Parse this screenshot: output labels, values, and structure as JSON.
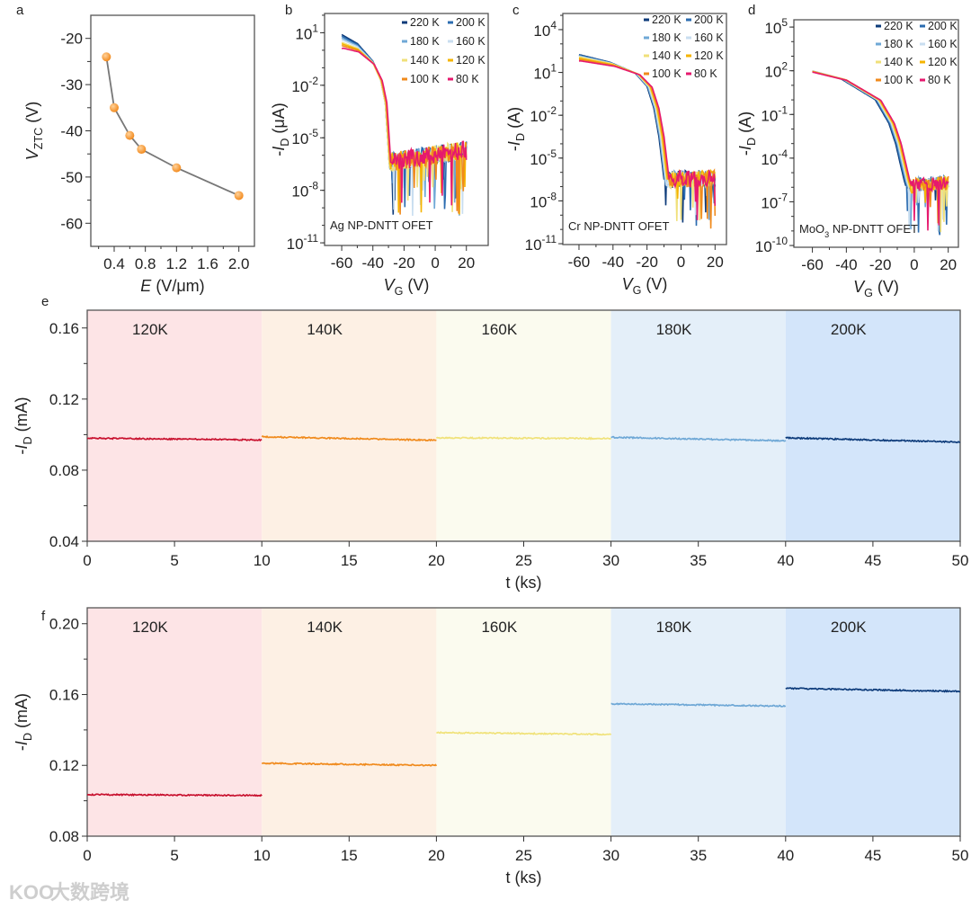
{
  "watermark": {
    "text": "大数跨境",
    "logo": "KOO"
  },
  "chart_data": [
    {
      "id": "a",
      "type": "scatter",
      "panel_label": "a",
      "xlabel": [
        {
          "t": "E",
          "style": "italic"
        },
        {
          "t": " (V/μm)"
        }
      ],
      "ylabel": [
        {
          "t": "V",
          "style": "italic"
        },
        {
          "t": "ZTC",
          "style": "sub"
        },
        {
          "t": " (V)"
        }
      ],
      "xlim": [
        0.1,
        2.2
      ],
      "ylim": [
        -65,
        -15
      ],
      "xticks": [
        0.4,
        0.8,
        1.2,
        1.6,
        2.0
      ],
      "xtick_labels": [
        "0.4",
        "0.8",
        "1.2",
        "1.6",
        "2.0"
      ],
      "yticks": [
        -20,
        -30,
        -40,
        -50,
        -60
      ],
      "ytick_labels": [
        "-20",
        "-30",
        "-40",
        "-50",
        "-60"
      ],
      "x": [
        0.3,
        0.4,
        0.6,
        0.75,
        1.2,
        2.0
      ],
      "y": [
        -24,
        -35,
        -41,
        -44,
        -48,
        -54
      ],
      "marker_color": "#f28a1e",
      "line_color": "#777777"
    },
    {
      "id": "b",
      "type": "line",
      "panel_label": "b",
      "yscale": "log",
      "log_base": "10",
      "xlabel": [
        {
          "t": "V",
          "style": "italic"
        },
        {
          "t": "G",
          "style": "sub"
        },
        {
          "t": " (V)"
        }
      ],
      "ylabel": [
        {
          "t": "-"
        },
        {
          "t": "I",
          "style": "italic"
        },
        {
          "t": "D",
          "style": "sub"
        },
        {
          "t": " (μA)"
        }
      ],
      "annotation": [
        {
          "t": "Ag NP-DNTT OFET"
        }
      ],
      "xlim": [
        -71,
        34
      ],
      "ylim_log10": [
        -11.15,
        2.1
      ],
      "xticks": [
        -60,
        -40,
        -20,
        0,
        20
      ],
      "xtick_labels": [
        "-60",
        "-40",
        "-20",
        "0",
        "20"
      ],
      "ytick_exponents": [
        1,
        -2,
        -5,
        -8,
        -11
      ],
      "base_curve": {
        "vg": [
          -60,
          -50,
          -40,
          -35,
          -32,
          -30.5,
          -29.5,
          20
        ],
        "log10_id": [
          0.6,
          0.2,
          -0.7,
          -1.7,
          -3.0,
          -5.0,
          -6.4,
          -5.7
        ]
      },
      "off_noise": 0.55,
      "off_dip": -9.6,
      "series": [
        {
          "name": "220 K",
          "color": "#0d3b7a",
          "on_offset": 0.3,
          "v_shift": 0
        },
        {
          "name": "200 K",
          "color": "#2b6cb0",
          "on_offset": 0.2,
          "v_shift": 0
        },
        {
          "name": "180 K",
          "color": "#6fa8d6",
          "on_offset": 0.1,
          "v_shift": 0
        },
        {
          "name": "160 K",
          "color": "#c9def0",
          "on_offset": 0.0,
          "v_shift": 0
        },
        {
          "name": "140 K",
          "color": "#f0e07a",
          "on_offset": -0.15,
          "v_shift": 0
        },
        {
          "name": "120 K",
          "color": "#f5b400",
          "on_offset": -0.25,
          "v_shift": 0.5
        },
        {
          "name": "100 K",
          "color": "#f08a1c",
          "on_offset": -0.35,
          "v_shift": 0.5
        },
        {
          "name": "80 K",
          "color": "#e6196e",
          "on_offset": -0.5,
          "v_shift": 1
        }
      ]
    },
    {
      "id": "c",
      "type": "line",
      "panel_label": "c",
      "yscale": "log",
      "log_base": "10",
      "xlabel": [
        {
          "t": "V",
          "style": "italic"
        },
        {
          "t": "G",
          "style": "sub"
        },
        {
          "t": " (V)"
        }
      ],
      "ylabel": [
        {
          "t": "-"
        },
        {
          "t": "I",
          "style": "italic"
        },
        {
          "t": "D",
          "style": "sub"
        },
        {
          "t": " (A)"
        }
      ],
      "annotation": [
        {
          "t": "Cr NP-DNTT OFET"
        }
      ],
      "xlim": [
        -69.5,
        26.7
      ],
      "ylim_log10": [
        -11.06,
        5.13
      ],
      "xticks": [
        -60,
        -40,
        -20,
        0,
        20
      ],
      "xtick_labels": [
        "-60",
        "-40",
        "-20",
        "0",
        "20"
      ],
      "ytick_exponents": [
        4,
        1,
        -2,
        -5,
        -8,
        -11
      ],
      "base_curve": {
        "vg": [
          -60,
          -40,
          -25,
          -18,
          -14,
          -11,
          -9,
          -8,
          20
        ],
        "log10_id": [
          2.1,
          1.6,
          0.9,
          0.0,
          -1.5,
          -3.5,
          -5.5,
          -6.5,
          -6.4
        ]
      },
      "off_noise": 0.6,
      "off_dip": -10,
      "series": [
        {
          "name": "220 K",
          "color": "#0d3b7a",
          "on_offset": 0.2,
          "v_shift": -2
        },
        {
          "name": "200 K",
          "color": "#2b6cb0",
          "on_offset": 0.15,
          "v_shift": -1.5
        },
        {
          "name": "180 K",
          "color": "#6fa8d6",
          "on_offset": 0.1,
          "v_shift": -1.5
        },
        {
          "name": "160 K",
          "color": "#c9def0",
          "on_offset": 0.05,
          "v_shift": -1
        },
        {
          "name": "140 K",
          "color": "#f0e07a",
          "on_offset": 0.0,
          "v_shift": -0.5
        },
        {
          "name": "120 K",
          "color": "#f5b400",
          "on_offset": -0.1,
          "v_shift": 0
        },
        {
          "name": "100 K",
          "color": "#f08a1c",
          "on_offset": -0.2,
          "v_shift": 0.5
        },
        {
          "name": "80 K",
          "color": "#e6196e",
          "on_offset": -0.3,
          "v_shift": 1
        }
      ]
    },
    {
      "id": "d",
      "type": "line",
      "panel_label": "d",
      "yscale": "log",
      "log_base": "10",
      "xlabel": [
        {
          "t": "V",
          "style": "italic"
        },
        {
          "t": "G",
          "style": "sub"
        },
        {
          "t": " (V)"
        }
      ],
      "ylabel": [
        {
          "t": "-"
        },
        {
          "t": "I",
          "style": "italic"
        },
        {
          "t": "D",
          "style": "sub"
        },
        {
          "t": " (A)"
        }
      ],
      "annotation": [
        {
          "t": "MoO"
        },
        {
          "t": "3",
          "style": "sub"
        },
        {
          "t": " NP-DNTT OFET"
        }
      ],
      "xlim": [
        -70.9,
        26
      ],
      "ylim_log10": [
        -10.12,
        5.5
      ],
      "xticks": [
        -60,
        -40,
        -20,
        0,
        20
      ],
      "xtick_labels": [
        "-60",
        "-40",
        "-20",
        "0",
        "20"
      ],
      "ytick_exponents": [
        5,
        2,
        -1,
        -4,
        -7,
        -10
      ],
      "base_curve": {
        "vg": [
          -60,
          -40,
          -20,
          -12,
          -8,
          -5,
          -3,
          -2,
          20
        ],
        "log10_id": [
          2.0,
          1.4,
          0.0,
          -1.6,
          -3.0,
          -4.5,
          -5.5,
          -5.9,
          -5.7
        ]
      },
      "off_noise": 0.5,
      "off_dip": -9.3,
      "series": [
        {
          "name": "220 K",
          "color": "#0d3b7a",
          "on_offset": 0.05,
          "v_shift": -3
        },
        {
          "name": "200 K",
          "color": "#2b6cb0",
          "on_offset": 0.05,
          "v_shift": -2.5
        },
        {
          "name": "180 K",
          "color": "#6fa8d6",
          "on_offset": 0.05,
          "v_shift": -2
        },
        {
          "name": "160 K",
          "color": "#c9def0",
          "on_offset": 0.0,
          "v_shift": -1.5
        },
        {
          "name": "140 K",
          "color": "#f0e07a",
          "on_offset": 0.0,
          "v_shift": -1
        },
        {
          "name": "120 K",
          "color": "#f5b400",
          "on_offset": -0.05,
          "v_shift": -0.5
        },
        {
          "name": "100 K",
          "color": "#f08a1c",
          "on_offset": -0.05,
          "v_shift": 0
        },
        {
          "name": "80 K",
          "color": "#e6196e",
          "on_offset": -0.1,
          "v_shift": 0.3
        }
      ]
    },
    {
      "id": "e",
      "type": "line",
      "panel_label": "e",
      "xlabel": [
        {
          "t": "t (ks)"
        }
      ],
      "ylabel": [
        {
          "t": "-"
        },
        {
          "t": "I",
          "style": "italic"
        },
        {
          "t": "D",
          "style": "sub"
        },
        {
          "t": " (mA)"
        }
      ],
      "xlim": [
        0,
        50
      ],
      "ylim": [
        0.04,
        0.17
      ],
      "xticks": [
        0,
        5,
        10,
        15,
        20,
        25,
        30,
        35,
        40,
        45,
        50
      ],
      "xtick_labels": [
        "0",
        "5",
        "10",
        "15",
        "20",
        "25",
        "30",
        "35",
        "40",
        "45",
        "50"
      ],
      "yticks": [
        0.04,
        0.08,
        0.12,
        0.16
      ],
      "ytick_labels": [
        "0.04",
        "0.08",
        "0.12",
        "0.16"
      ],
      "yminor": [
        0.06,
        0.1,
        0.14
      ],
      "segments": [
        {
          "label": "120K",
          "t": [
            0,
            10
          ],
          "start": 0.098,
          "end": 0.097,
          "color": "#c8102e",
          "band": "#fde4e6"
        },
        {
          "label": "140K",
          "t": [
            10,
            20
          ],
          "start": 0.0988,
          "end": 0.0968,
          "color": "#f08a1c",
          "band": "#fdf0e4"
        },
        {
          "label": "160K",
          "t": [
            20,
            30
          ],
          "start": 0.0982,
          "end": 0.0978,
          "color": "#f0e27a",
          "band": "#fbfbef"
        },
        {
          "label": "180K",
          "t": [
            30,
            40
          ],
          "start": 0.0985,
          "end": 0.0965,
          "color": "#6fa8d6",
          "band": "#e4eff9"
        },
        {
          "label": "200K",
          "t": [
            40,
            50
          ],
          "start": 0.0982,
          "end": 0.0958,
          "color": "#0d3b7a",
          "band": "#d3e5fa"
        }
      ]
    },
    {
      "id": "f",
      "type": "line",
      "panel_label": "f",
      "xlabel": [
        {
          "t": "t (ks)"
        }
      ],
      "ylabel": [
        {
          "t": "-"
        },
        {
          "t": "I",
          "style": "italic"
        },
        {
          "t": "D",
          "style": "sub"
        },
        {
          "t": " (mA)"
        }
      ],
      "xlim": [
        0,
        50
      ],
      "ylim": [
        0.08,
        0.209
      ],
      "xticks": [
        0,
        5,
        10,
        15,
        20,
        25,
        30,
        35,
        40,
        45,
        50
      ],
      "xtick_labels": [
        "0",
        "5",
        "10",
        "15",
        "20",
        "25",
        "30",
        "35",
        "40",
        "45",
        "50"
      ],
      "yticks": [
        0.08,
        0.12,
        0.16,
        0.2
      ],
      "ytick_labels": [
        "0.08",
        "0.12",
        "0.16",
        "0.20"
      ],
      "yminor": [
        0.1,
        0.14,
        0.18
      ],
      "segments": [
        {
          "label": "120K",
          "t": [
            0,
            10
          ],
          "start": 0.1035,
          "end": 0.103,
          "color": "#c8102e",
          "band": "#fde4e6"
        },
        {
          "label": "140K",
          "t": [
            10,
            20
          ],
          "start": 0.1212,
          "end": 0.12,
          "color": "#f08a1c",
          "band": "#fdf0e4"
        },
        {
          "label": "160K",
          "t": [
            20,
            30
          ],
          "start": 0.1385,
          "end": 0.1375,
          "color": "#f0e27a",
          "band": "#fbfbef"
        },
        {
          "label": "180K",
          "t": [
            30,
            40
          ],
          "start": 0.1548,
          "end": 0.1535,
          "color": "#6fa8d6",
          "band": "#e4eff9"
        },
        {
          "label": "200K",
          "t": [
            40,
            50
          ],
          "start": 0.1635,
          "end": 0.1618,
          "color": "#0d3b7a",
          "band": "#d3e5fa"
        }
      ]
    }
  ]
}
